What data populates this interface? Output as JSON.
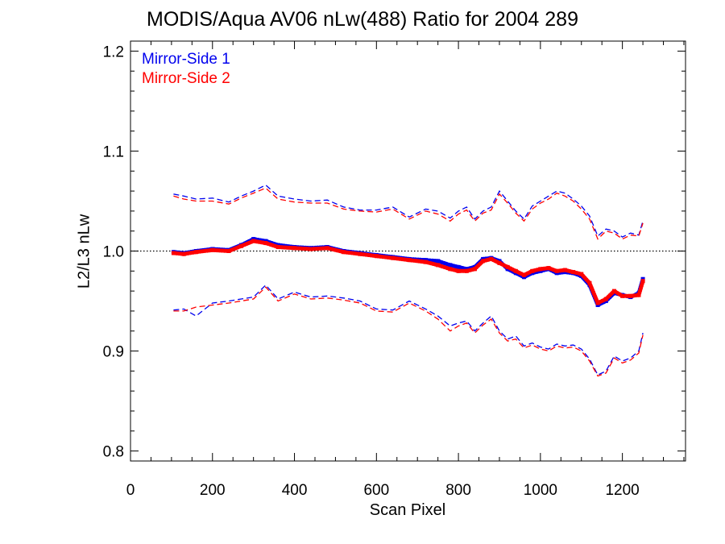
{
  "chart_data": {
    "type": "line",
    "title": "MODIS/Aqua AV06 nLw(488) Ratio for 2004 289",
    "xlabel": "Scan Pixel",
    "ylabel": "L2/L3 nLw",
    "xlim": [
      0,
      1354
    ],
    "ylim": [
      0.79,
      1.21
    ],
    "x_ticks": [
      0,
      200,
      400,
      600,
      800,
      1000,
      1200
    ],
    "y_ticks": [
      0.8,
      0.9,
      1.0,
      1.1,
      1.2
    ],
    "x_tick_labels": [
      "0",
      "200",
      "400",
      "600",
      "800",
      "1000",
      "1200"
    ],
    "y_tick_labels": [
      "0.8",
      "0.9",
      "1.0",
      "1.1",
      "1.2"
    ],
    "reference_line": 1.0,
    "legend_position": "top-left",
    "series": [
      {
        "name": "Mirror-Side 1",
        "color": "#0000ee",
        "x": [
          105,
          130,
          160,
          200,
          240,
          270,
          300,
          330,
          360,
          400,
          440,
          480,
          520,
          560,
          600,
          640,
          680,
          720,
          750,
          780,
          800,
          820,
          840,
          860,
          880,
          900,
          920,
          940,
          960,
          980,
          1000,
          1020,
          1040,
          1060,
          1080,
          1100,
          1120,
          1140,
          1160,
          1180,
          1200,
          1220,
          1240,
          1250
        ],
        "mean": [
          0.999,
          0.998,
          1.0,
          1.002,
          1.001,
          1.006,
          1.012,
          1.01,
          1.006,
          1.004,
          1.003,
          1.004,
          1.0,
          0.998,
          0.996,
          0.994,
          0.992,
          0.991,
          0.99,
          0.986,
          0.984,
          0.982,
          0.984,
          0.992,
          0.993,
          0.99,
          0.982,
          0.978,
          0.974,
          0.978,
          0.98,
          0.982,
          0.978,
          0.979,
          0.978,
          0.975,
          0.966,
          0.946,
          0.95,
          0.958,
          0.956,
          0.954,
          0.958,
          0.972
        ],
        "upper": [
          1.057,
          1.055,
          1.052,
          1.053,
          1.049,
          1.055,
          1.06,
          1.066,
          1.055,
          1.052,
          1.05,
          1.051,
          1.044,
          1.041,
          1.041,
          1.044,
          1.034,
          1.042,
          1.04,
          1.033,
          1.04,
          1.044,
          1.032,
          1.04,
          1.044,
          1.06,
          1.05,
          1.04,
          1.032,
          1.045,
          1.05,
          1.055,
          1.06,
          1.058,
          1.052,
          1.045,
          1.035,
          1.015,
          1.022,
          1.02,
          1.014,
          1.018,
          1.016,
          1.03
        ],
        "lower": [
          0.941,
          0.942,
          0.935,
          0.948,
          0.95,
          0.952,
          0.954,
          0.966,
          0.952,
          0.959,
          0.954,
          0.955,
          0.953,
          0.95,
          0.942,
          0.941,
          0.95,
          0.942,
          0.935,
          0.925,
          0.928,
          0.93,
          0.92,
          0.928,
          0.935,
          0.92,
          0.912,
          0.915,
          0.905,
          0.908,
          0.904,
          0.902,
          0.907,
          0.905,
          0.906,
          0.902,
          0.892,
          0.876,
          0.88,
          0.895,
          0.89,
          0.893,
          0.9,
          0.918
        ]
      },
      {
        "name": "Mirror-Side 2",
        "color": "#ff0000",
        "x": [
          105,
          130,
          160,
          200,
          240,
          270,
          300,
          330,
          360,
          400,
          440,
          480,
          520,
          560,
          600,
          640,
          680,
          720,
          750,
          780,
          800,
          820,
          840,
          860,
          880,
          900,
          920,
          940,
          960,
          980,
          1000,
          1020,
          1040,
          1060,
          1080,
          1100,
          1120,
          1140,
          1160,
          1180,
          1200,
          1220,
          1240,
          1250
        ],
        "mean": [
          0.998,
          0.997,
          0.999,
          1.001,
          1.0,
          1.005,
          1.01,
          1.008,
          1.004,
          1.003,
          1.002,
          1.003,
          0.999,
          0.997,
          0.995,
          0.993,
          0.991,
          0.989,
          0.986,
          0.982,
          0.98,
          0.98,
          0.982,
          0.99,
          0.992,
          0.988,
          0.984,
          0.98,
          0.976,
          0.98,
          0.982,
          0.983,
          0.98,
          0.981,
          0.979,
          0.977,
          0.968,
          0.948,
          0.952,
          0.96,
          0.955,
          0.955,
          0.956,
          0.97
        ],
        "upper": [
          1.055,
          1.052,
          1.05,
          1.05,
          1.047,
          1.053,
          1.058,
          1.063,
          1.052,
          1.049,
          1.048,
          1.048,
          1.042,
          1.04,
          1.039,
          1.042,
          1.032,
          1.04,
          1.037,
          1.03,
          1.037,
          1.041,
          1.03,
          1.038,
          1.041,
          1.057,
          1.048,
          1.038,
          1.03,
          1.042,
          1.048,
          1.052,
          1.058,
          1.055,
          1.05,
          1.042,
          1.032,
          1.012,
          1.02,
          1.018,
          1.012,
          1.016,
          1.015,
          1.028
        ],
        "lower": [
          0.94,
          0.94,
          0.944,
          0.946,
          0.948,
          0.95,
          0.952,
          0.964,
          0.95,
          0.957,
          0.952,
          0.953,
          0.951,
          0.948,
          0.94,
          0.939,
          0.948,
          0.94,
          0.932,
          0.92,
          0.925,
          0.928,
          0.918,
          0.926,
          0.932,
          0.918,
          0.91,
          0.912,
          0.903,
          0.906,
          0.902,
          0.9,
          0.905,
          0.903,
          0.904,
          0.9,
          0.89,
          0.875,
          0.878,
          0.893,
          0.888,
          0.891,
          0.898,
          0.916
        ]
      }
    ]
  }
}
